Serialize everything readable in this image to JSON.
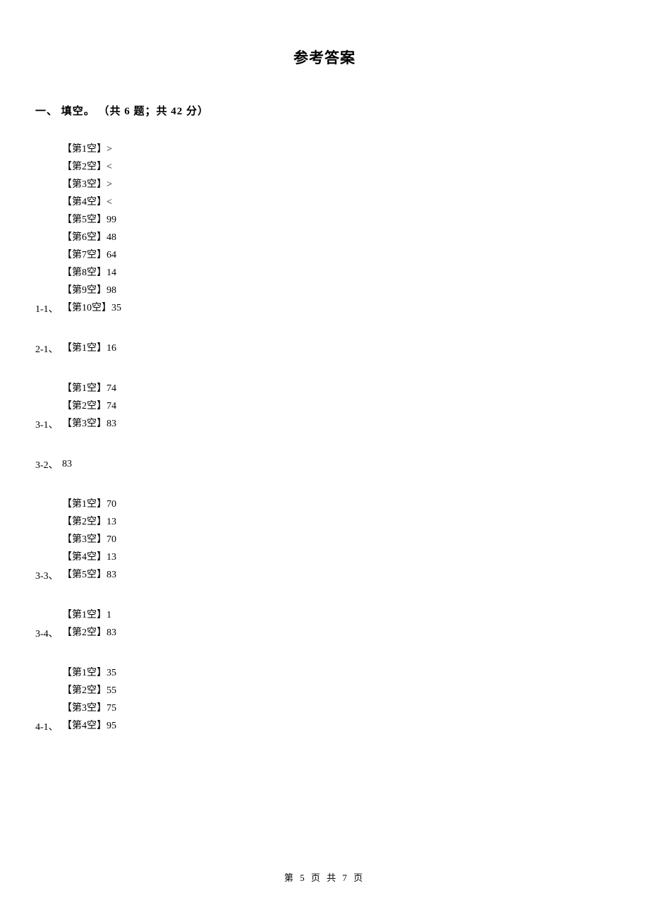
{
  "title": "参考答案",
  "section_header": "一、 填空。 （共 6 题；共 42 分）",
  "groups": {
    "g1_1": {
      "number": "1-1、",
      "lines": [
        "【第1空】>",
        "【第2空】<",
        "【第3空】>",
        "【第4空】<",
        "【第5空】99",
        "【第6空】48",
        "【第7空】64",
        "【第8空】14",
        "【第9空】98",
        "【第10空】35"
      ]
    },
    "g2_1": {
      "number": "2-1、",
      "lines": [
        "【第1空】16"
      ]
    },
    "g3_1": {
      "number": "3-1、",
      "lines": [
        "【第1空】74",
        "【第2空】74",
        "【第3空】83"
      ]
    },
    "g3_2": {
      "number": "3-2、",
      "lines": [
        "83"
      ]
    },
    "g3_3": {
      "number": "3-3、",
      "lines": [
        "【第1空】70",
        "【第2空】13",
        "【第3空】70",
        "【第4空】13",
        "【第5空】83"
      ]
    },
    "g3_4": {
      "number": "3-4、",
      "lines": [
        "【第1空】1",
        "【第2空】83"
      ]
    },
    "g4_1": {
      "number": "4-1、",
      "lines": [
        "【第1空】35",
        "【第2空】55",
        "【第3空】75",
        "【第4空】95"
      ]
    }
  },
  "footer": "第 5 页 共 7 页"
}
